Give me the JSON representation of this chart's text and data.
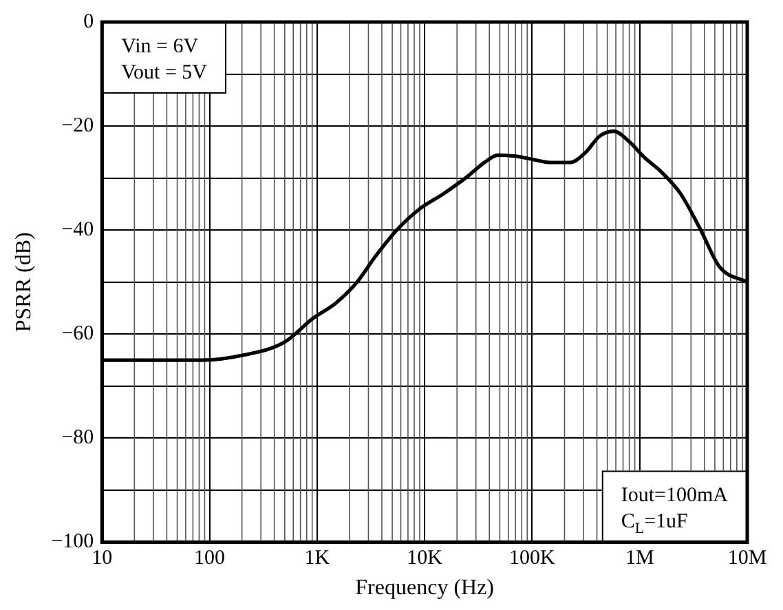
{
  "chart_data": {
    "type": "line",
    "xlabel": "Frequency (Hz)",
    "ylabel": "PSRR (dB)",
    "x": [
      10,
      85,
      210,
      500,
      910,
      1500,
      2350,
      3500,
      5500,
      8900,
      15000,
      24000,
      36000,
      48000,
      70000,
      91000,
      150000,
      224000,
      316000,
      420000,
      575000,
      800000,
      1100000,
      1550000,
      2400000,
      3700000,
      5500000,
      10000000
    ],
    "series": [
      {
        "color": "#000000",
        "values": [
          -65,
          -65,
          -64,
          -61.5,
          -57,
          -54,
          -50,
          -45,
          -40,
          -36,
          -33,
          -30,
          -27,
          -25.6,
          -25.8,
          -26.2,
          -27,
          -27,
          -25,
          -22,
          -21,
          -23,
          -26,
          -28.6,
          -33,
          -40,
          -47,
          -50
        ]
      }
    ],
    "xlim": [
      10,
      10000000
    ],
    "ylim": [
      -100,
      0
    ],
    "xticks": [
      {
        "value": 10,
        "label": "10"
      },
      {
        "value": 100,
        "label": "100"
      },
      {
        "value": 1000,
        "label": "1K"
      },
      {
        "value": 10000,
        "label": "10K"
      },
      {
        "value": 100000,
        "label": "100K"
      },
      {
        "value": 1000000,
        "label": "1M"
      },
      {
        "value": 10000000,
        "label": "10M"
      }
    ],
    "yticks": [
      -100,
      {
        "value": -90,
        "label": null
      },
      -80,
      {
        "value": -70,
        "label": null
      },
      -60,
      {
        "value": -50,
        "label": null
      },
      -40,
      {
        "value": -30,
        "label": null
      },
      -20,
      {
        "value": -10,
        "label": null
      },
      0
    ],
    "log": "x",
    "grid": true,
    "legend": false,
    "marker": "none",
    "line_style": "solid",
    "annotations": [
      "Vin = 6V\nVout = 5V",
      "Iout=100mA\nC$_{L}$=1uF"
    ]
  }
}
